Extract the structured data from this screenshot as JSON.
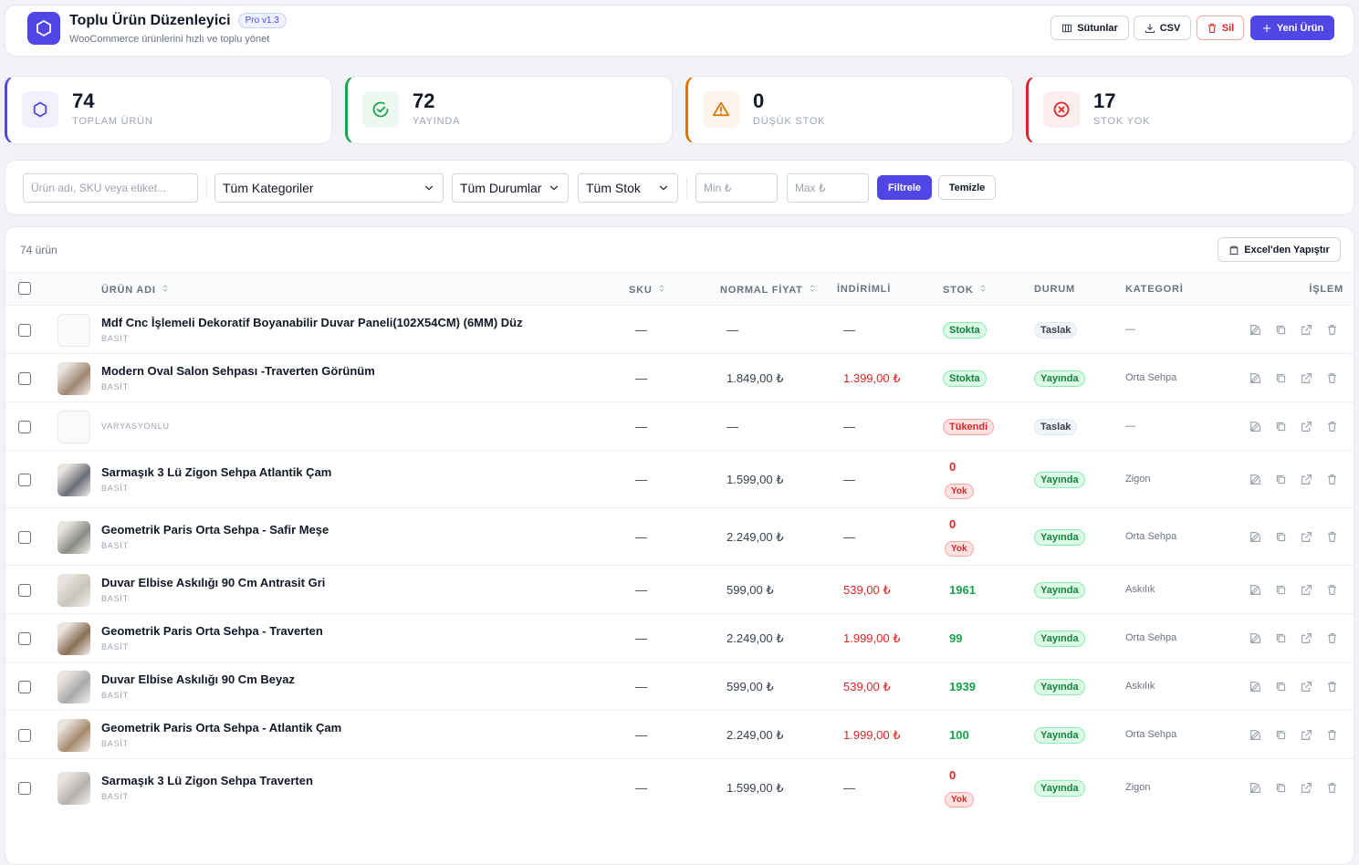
{
  "header": {
    "title": "Toplu Ürün Düzenleyici",
    "badge": "Pro v1.3",
    "subtitle": "WooCommerce ürünlerini hızlı ve toplu yönet",
    "buttons": [
      "Sütunlar",
      "CSV",
      "Sil",
      "Yeni Ürün"
    ]
  },
  "stats": [
    {
      "value": 74,
      "label": "TOPLAM ÜRÜN",
      "color": "#4f46e5"
    },
    {
      "value": 72,
      "label": "YAYINDA",
      "color": "#16a34a"
    },
    {
      "value": 0,
      "label": "DÜŞÜK STOK",
      "color": "#d97706"
    },
    {
      "value": 17,
      "label": "STOK YOK",
      "color": "#dc2626"
    }
  ],
  "filters": {
    "search_placeholder": "Ürün adı, SKU veya etiket...",
    "selects": [
      "Tüm Kategoriler",
      "Tüm Durumlar",
      "Tüm Stok"
    ],
    "min_placeholder": "Min ₺",
    "max_placeholder": "Max ₺",
    "apply": "Filtrele",
    "clear": "Temizle"
  },
  "table": {
    "count": "74 ürün",
    "paste_button": "Excel'den Yapıştır",
    "columns": [
      {
        "label": "ÜRÜN ADI",
        "sortable": true
      },
      {
        "label": "SKU",
        "sortable": true
      },
      {
        "label": "NORMAL FİYAT",
        "sortable": true
      },
      {
        "label": "İNDİRİMLİ",
        "sortable": false
      },
      {
        "label": "STOK",
        "sortable": true
      },
      {
        "label": "DURUM",
        "sortable": false
      },
      {
        "label": "KATEGORİ",
        "sortable": false
      },
      {
        "label": "İŞLEM",
        "sortable": false
      }
    ],
    "rows": [
      {
        "name": "Mdf Cnc İşlemeli Dekoratif Boyanabilir Duvar Paneli(102X54CM) (6MM) Düz",
        "type": "BASİT",
        "sku": "—",
        "price": "—",
        "sale": "—",
        "stock_badge": "Stokta",
        "status": "Taslak",
        "category": "—"
      },
      {
        "name": "Modern Oval Salon Sehpası -Traverten Görünüm",
        "type": "BASİT",
        "sku": "—",
        "price": "1.849,00 ₺",
        "sale": "1.399,00 ₺",
        "stock_badge": "Stokta",
        "status": "Yayında",
        "category": "Orta Sehpa"
      },
      {
        "type": "VARYASYONLU",
        "sku": "—",
        "price": "—",
        "sale": "—",
        "stock_badge": "Tükendi",
        "status": "Taslak",
        "category": "—"
      },
      {
        "name": "Sarmaşık 3 Lü Zigon Sehpa Atlantik Çam",
        "type": "BASİT",
        "sku": "—",
        "price": "1.599,00 ₺",
        "sale": "—",
        "stock": 0,
        "stock_note": "Yok",
        "status": "Yayında",
        "category": "Zigon"
      },
      {
        "name": "Geometrik Paris Orta Sehpa - Safir Meşe",
        "type": "BASİT",
        "sku": "—",
        "price": "2.249,00 ₺",
        "sale": "—",
        "stock": 0,
        "stock_note": "Yok",
        "status": "Yayında",
        "category": "Orta Sehpa"
      },
      {
        "name": "Duvar Elbise Askılığı 90 Cm Antrasit Gri",
        "type": "BASİT",
        "sku": "—",
        "price": "599,00 ₺",
        "sale": "539,00 ₺",
        "stock": 1961,
        "status": "Yayında",
        "category": "Askılık"
      },
      {
        "name": "Geometrik Paris Orta Sehpa - Traverten",
        "type": "BASİT",
        "sku": "—",
        "price": "2.249,00 ₺",
        "sale": "1.999,00 ₺",
        "stock": 99,
        "status": "Yayında",
        "category": "Orta Sehpa"
      },
      {
        "name": "Duvar Elbise Askılığı 90 Cm Beyaz",
        "type": "BASİT",
        "sku": "—",
        "price": "599,00 ₺",
        "sale": "539,00 ₺",
        "stock": 1939,
        "status": "Yayında",
        "category": "Askılık"
      },
      {
        "name": "Geometrik Paris Orta Sehpa - Atlantik Çam",
        "type": "BASİT",
        "sku": "—",
        "price": "2.249,00 ₺",
        "sale": "1.999,00 ₺",
        "stock": 100,
        "status": "Yayında",
        "category": "Orta Sehpa"
      },
      {
        "name": "Sarmaşık 3 Lü Zigon Sehpa Traverten",
        "type": "BASİT",
        "sku": "—",
        "price": "1.599,00 ₺",
        "sale": "—",
        "stock": 0,
        "stock_note": "Yok",
        "status": "Yayında",
        "category": "Zigon"
      }
    ]
  }
}
